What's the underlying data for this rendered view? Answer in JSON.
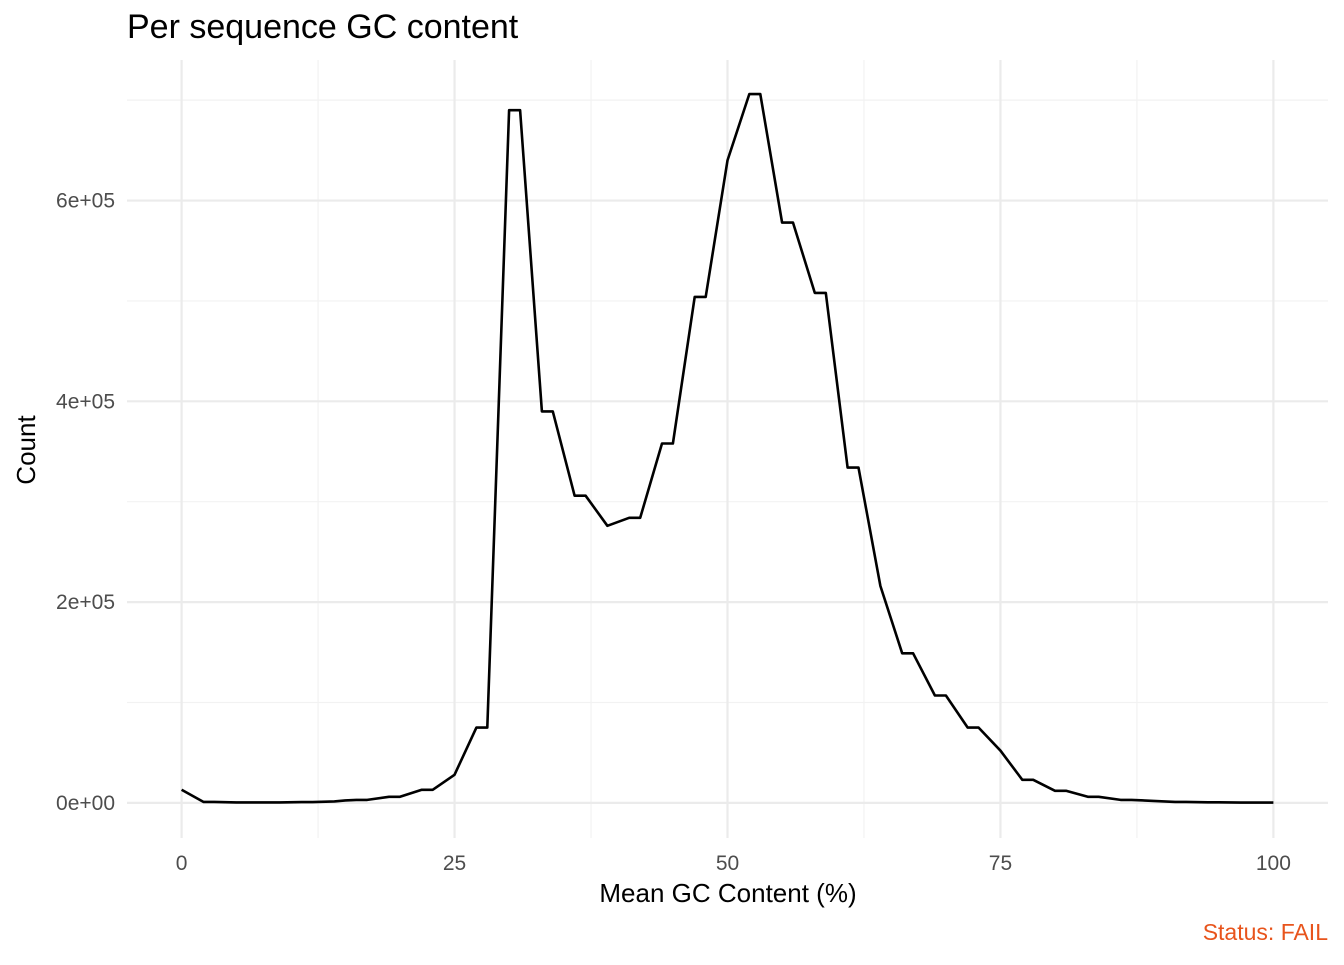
{
  "chart_data": {
    "type": "line",
    "title": "Per sequence GC content",
    "xlabel": "Mean GC Content (%)",
    "ylabel": "Count",
    "xlim": [
      -5,
      105
    ],
    "ylim": [
      -35000,
      740000
    ],
    "x_ticks": [
      0,
      25,
      50,
      75,
      100
    ],
    "x_tick_labels": [
      "0",
      "25",
      "50",
      "75",
      "100"
    ],
    "y_ticks": [
      0,
      200000,
      400000,
      600000
    ],
    "y_tick_labels": [
      "0e+00",
      "2e+05",
      "4e+05",
      "6e+05"
    ],
    "grid": true,
    "legend": "none",
    "caption": "Status: FAIL",
    "caption_color": "#e8541c",
    "series": [
      {
        "color": "#000000",
        "x": [
          0,
          2,
          3,
          5,
          6,
          8,
          9,
          11,
          12,
          14,
          15,
          16,
          17,
          19,
          20,
          22,
          23,
          25,
          27,
          28,
          30,
          31,
          33,
          34,
          36,
          37,
          39,
          41,
          42,
          44,
          45,
          47,
          48,
          50,
          52,
          53,
          55,
          56,
          58,
          59,
          61,
          62,
          64,
          66,
          67,
          69,
          70,
          72,
          73,
          75,
          77,
          78,
          80,
          81,
          83,
          84,
          86,
          87,
          89,
          91,
          92,
          94,
          95,
          97,
          98,
          100
        ],
        "y": [
          13000,
          1000,
          1000,
          500,
          500,
          500,
          500,
          800,
          800,
          1500,
          2500,
          3000,
          3000,
          6000,
          6000,
          13000,
          13000,
          28000,
          75000,
          75000,
          690000,
          690000,
          390000,
          390000,
          306000,
          306000,
          276000,
          284000,
          284000,
          358000,
          358000,
          504000,
          504000,
          640000,
          706000,
          706000,
          578000,
          578000,
          508000,
          508000,
          334000,
          334000,
          216000,
          149000,
          149000,
          107000,
          107000,
          75000,
          75000,
          52000,
          23000,
          23000,
          12000,
          12000,
          6000,
          6000,
          3000,
          3000,
          2000,
          1000,
          1000,
          600,
          600,
          300,
          300,
          300
        ]
      }
    ]
  }
}
